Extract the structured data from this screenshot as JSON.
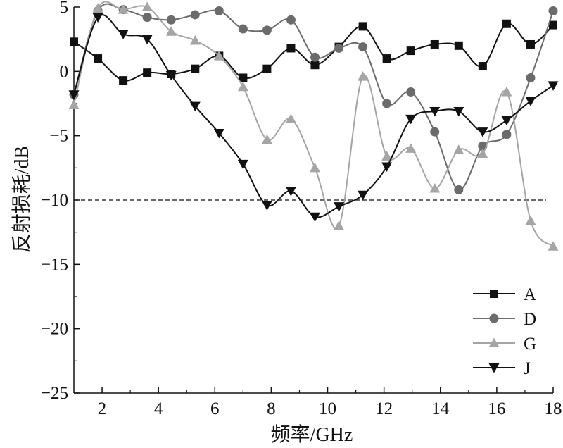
{
  "chart_data": {
    "type": "line",
    "xlabel": "频率/GHz",
    "ylabel": "反射损耗/dB",
    "xlim": [
      1,
      18
    ],
    "ylim": [
      -25,
      5
    ],
    "xticks": [
      2,
      4,
      6,
      8,
      10,
      12,
      14,
      16,
      18
    ],
    "yticks": [
      5,
      0,
      -5,
      -10,
      -15,
      -20,
      -25
    ],
    "ytick_labels": [
      "5",
      "0",
      "−5",
      "−10",
      "−15",
      "−20",
      "−25"
    ],
    "xtick_labels": [
      "2",
      "4",
      "6",
      "8",
      "10",
      "12",
      "14",
      "16",
      "18"
    ],
    "reference_line": {
      "y": -10,
      "style": "dashed"
    },
    "legend_position": "bottom-right",
    "grid": false,
    "series": [
      {
        "name": "A",
        "marker": "square",
        "color": "#111111",
        "x": [
          1.0,
          1.85,
          2.75,
          3.6,
          4.45,
          5.3,
          6.15,
          7.0,
          7.85,
          8.7,
          9.55,
          10.4,
          11.25,
          12.1,
          12.95,
          13.8,
          14.65,
          15.5,
          16.35,
          17.2,
          18.0
        ],
        "y": [
          2.3,
          1.0,
          -0.7,
          -0.1,
          -0.2,
          0.2,
          1.2,
          -0.5,
          0.2,
          1.8,
          0.5,
          1.9,
          3.5,
          1.0,
          1.6,
          2.1,
          2.0,
          0.4,
          3.7,
          2.1,
          3.6
        ]
      },
      {
        "name": "D",
        "marker": "circle",
        "color": "#6b6b6b",
        "x": [
          1.0,
          1.85,
          2.75,
          3.6,
          4.45,
          5.3,
          6.15,
          7.0,
          7.85,
          8.7,
          9.55,
          10.4,
          11.25,
          12.1,
          12.95,
          13.8,
          14.65,
          15.5,
          16.35,
          17.2,
          18.0
        ],
        "y": [
          -1.8,
          4.7,
          4.8,
          4.2,
          4.0,
          4.4,
          4.7,
          3.3,
          3.2,
          4.0,
          1.1,
          1.8,
          1.9,
          -2.5,
          -1.6,
          -4.7,
          -9.2,
          -5.8,
          -4.9,
          -0.5,
          4.7
        ]
      },
      {
        "name": "G",
        "marker": "triangle-up",
        "color": "#a5a5a5",
        "x": [
          1.0,
          1.85,
          2.75,
          3.6,
          4.45,
          5.3,
          6.15,
          7.0,
          7.85,
          8.7,
          9.55,
          10.4,
          11.25,
          12.1,
          12.95,
          13.8,
          14.65,
          15.5,
          16.35,
          17.2,
          18.0
        ],
        "y": [
          -2.6,
          4.9,
          4.8,
          5.0,
          3.1,
          2.4,
          1.2,
          -1.2,
          -5.3,
          -3.7,
          -7.5,
          -12.0,
          -0.4,
          -6.6,
          -6.0,
          -9.1,
          -6.1,
          -6.4,
          -1.6,
          -11.6,
          -13.6
        ]
      },
      {
        "name": "J",
        "marker": "triangle-down",
        "color": "#111111",
        "x": [
          1.0,
          1.85,
          2.75,
          3.6,
          4.45,
          5.3,
          6.15,
          7.0,
          7.85,
          8.7,
          9.55,
          10.4,
          11.25,
          12.1,
          12.95,
          13.8,
          14.65,
          15.5,
          16.35,
          17.2,
          18.0
        ],
        "y": [
          -1.8,
          4.2,
          2.9,
          2.5,
          -0.3,
          -2.7,
          -4.8,
          -7.2,
          -10.4,
          -9.3,
          -11.3,
          -10.5,
          -9.6,
          -7.4,
          -3.7,
          -3.1,
          -3.1,
          -4.7,
          -3.8,
          -2.3,
          -1.1
        ]
      }
    ]
  }
}
